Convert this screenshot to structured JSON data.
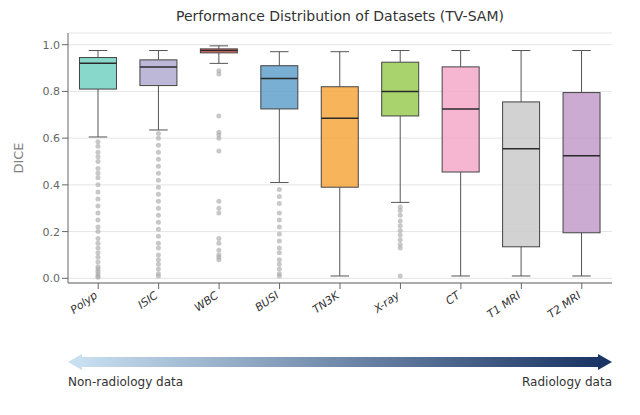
{
  "chart_data": {
    "type": "box",
    "title": "Performance Distribution of Datasets (TV-SAM)",
    "ylabel": "DICE",
    "categories": [
      "Polyp",
      "ISIC",
      "WBC",
      "BUSI",
      "TN3K",
      "X-ray",
      "CT",
      "T1 MRI",
      "T2 MRI"
    ],
    "colors": [
      "#6ecfbf",
      "#b0a8d0",
      "#e8554e",
      "#5b9ec9",
      "#f5a337",
      "#95c94d",
      "#f4a6c8",
      "#c8c8c8",
      "#c098c8"
    ],
    "values": [
      {
        "low": 0.605,
        "q1": 0.81,
        "median": 0.92,
        "q3": 0.945,
        "high": 0.975,
        "outliers": [
          0.585,
          0.565,
          0.54,
          0.52,
          0.5,
          0.47,
          0.45,
          0.43,
          0.4,
          0.37,
          0.34,
          0.31,
          0.28,
          0.25,
          0.22,
          0.2,
          0.17,
          0.15,
          0.13,
          0.11,
          0.09,
          0.07,
          0.05,
          0.04,
          0.03,
          0.02,
          0.01,
          0.005
        ]
      },
      {
        "low": 0.635,
        "q1": 0.825,
        "median": 0.905,
        "q3": 0.935,
        "high": 0.975,
        "outliers": [
          0.62,
          0.6,
          0.57,
          0.54,
          0.51,
          0.48,
          0.45,
          0.42,
          0.39,
          0.36,
          0.33,
          0.3,
          0.27,
          0.24,
          0.21,
          0.18,
          0.15,
          0.13,
          0.1,
          0.08,
          0.06,
          0.04,
          0.02,
          0.01
        ]
      },
      {
        "low": 0.92,
        "q1": 0.965,
        "median": 0.975,
        "q3": 0.982,
        "high": 0.995,
        "outliers": [
          0.888,
          0.875,
          0.695,
          0.625,
          0.615,
          0.6,
          0.545,
          0.33,
          0.3,
          0.28,
          0.17,
          0.15,
          0.12,
          0.1,
          0.09,
          0.08
        ]
      },
      {
        "low": 0.41,
        "q1": 0.725,
        "median": 0.855,
        "q3": 0.91,
        "high": 0.97,
        "outliers": [
          0.38,
          0.35,
          0.32,
          0.28,
          0.25,
          0.22,
          0.19,
          0.16,
          0.13,
          0.11,
          0.08,
          0.06,
          0.04,
          0.02,
          0.01
        ]
      },
      {
        "low": 0.01,
        "q1": 0.39,
        "median": 0.685,
        "q3": 0.82,
        "high": 0.97,
        "outliers": []
      },
      {
        "low": 0.325,
        "q1": 0.695,
        "median": 0.8,
        "q3": 0.925,
        "high": 0.975,
        "outliers": [
          0.305,
          0.29,
          0.27,
          0.245,
          0.225,
          0.205,
          0.185,
          0.165,
          0.145,
          0.13,
          0.01
        ]
      },
      {
        "low": 0.01,
        "q1": 0.455,
        "median": 0.725,
        "q3": 0.905,
        "high": 0.975,
        "outliers": []
      },
      {
        "low": 0.01,
        "q1": 0.135,
        "median": 0.555,
        "q3": 0.755,
        "high": 0.975,
        "outliers": []
      },
      {
        "low": 0.01,
        "q1": 0.195,
        "median": 0.525,
        "q3": 0.795,
        "high": 0.975,
        "outliers": []
      }
    ],
    "ylim": [
      -0.02,
      1.05
    ],
    "yticks": [
      {
        "value": 0,
        "label": "0.0"
      },
      0.2,
      0.4,
      0.6,
      0.8,
      {
        "value": 1,
        "label": "1.0"
      }
    ],
    "grid": true,
    "annotations": [
      {
        "text": "Non-radiology data",
        "color": "#c8dff0"
      },
      {
        "text": "Radiology data",
        "color": "#1a3464"
      }
    ]
  }
}
